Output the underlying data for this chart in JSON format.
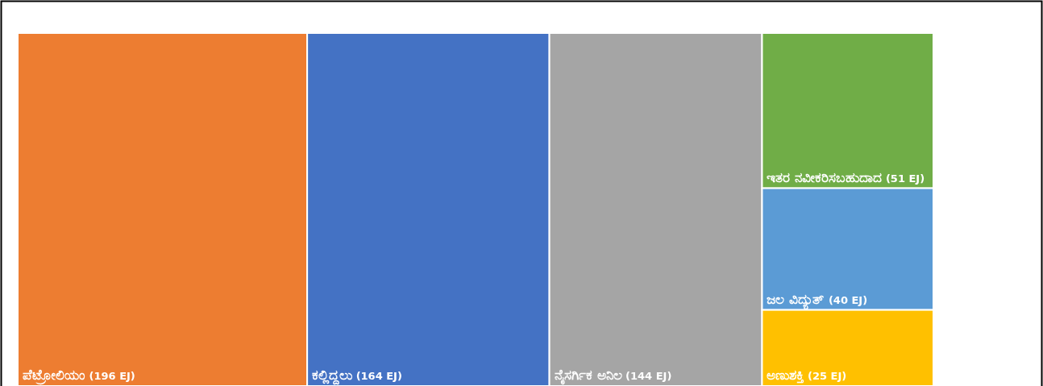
{
  "chart_data": {
    "type": "other",
    "categories": [
      "ಪೆಟ್ರೋಲಿಯಂ",
      "ಕಲ್ಲಿದ್ದಲು",
      "ನೈಸರ್ಗಿಕ ಅನಿಲ",
      "ಇತರ ನವೀಕರಿಸಬಹುದಾದ",
      "ಜಲ ವಿದ್ಯುತ್",
      "ಅಣುಶಕ್ತಿ"
    ],
    "values": [
      196,
      164,
      144,
      51,
      40,
      25
    ],
    "value_labels": [
      "(196 EJ)",
      "(164 EJ)",
      "(144 EJ)",
      "(51 EJ)",
      "(40 EJ)",
      "(25 EJ)"
    ],
    "colors": [
      "#ed7d31",
      "#4472c4",
      "#a5a5a5",
      "#70ad47",
      "#5b9bd5",
      "#ffc000"
    ]
  }
}
